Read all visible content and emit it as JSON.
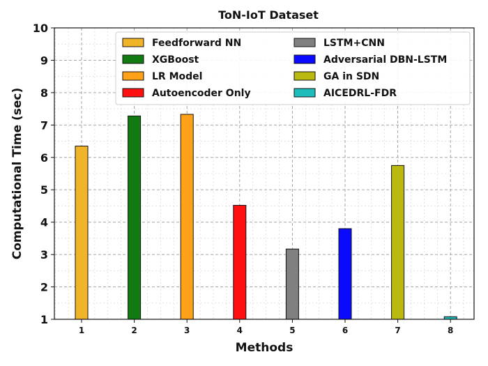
{
  "chart_data": {
    "type": "bar",
    "title": "ToN-IoT Dataset",
    "xlabel": "Methods",
    "ylabel": "Computational Time (sec)",
    "categories": [
      "1",
      "2",
      "3",
      "4",
      "5",
      "6",
      "7",
      "8"
    ],
    "ylim": [
      1,
      10
    ],
    "yticks": [
      "1",
      "2",
      "3",
      "4",
      "5",
      "6",
      "7",
      "8",
      "9",
      "10"
    ],
    "grid": true,
    "legend_position": "top",
    "series": [
      {
        "name": "Feedforward NN",
        "values": [
          6.35,
          null,
          null,
          null,
          null,
          null,
          null,
          null
        ],
        "color": "#f0b429"
      },
      {
        "name": "XGBoost",
        "values": [
          null,
          7.28,
          null,
          null,
          null,
          null,
          null,
          null
        ],
        "color": "#117a11"
      },
      {
        "name": "LR Model",
        "values": [
          null,
          null,
          7.33,
          null,
          null,
          null,
          null,
          null
        ],
        "color": "#ffa21a"
      },
      {
        "name": "Autoencoder Only",
        "values": [
          null,
          null,
          null,
          4.52,
          null,
          null,
          null,
          null
        ],
        "color": "#ff1010"
      },
      {
        "name": "LSTM+CNN",
        "values": [
          null,
          null,
          null,
          null,
          3.17,
          null,
          null,
          null
        ],
        "color": "#808080"
      },
      {
        "name": "Adversarial DBN-LSTM",
        "values": [
          null,
          null,
          null,
          null,
          null,
          3.8,
          null,
          null
        ],
        "color": "#0a0aff"
      },
      {
        "name": "GA in SDN",
        "values": [
          null,
          null,
          null,
          null,
          null,
          null,
          5.75,
          null
        ],
        "color": "#b9b90f"
      },
      {
        "name": "AICEDRL-FDR",
        "values": [
          null,
          null,
          null,
          null,
          null,
          null,
          null,
          1.08
        ],
        "color": "#1fbcbc"
      }
    ]
  }
}
